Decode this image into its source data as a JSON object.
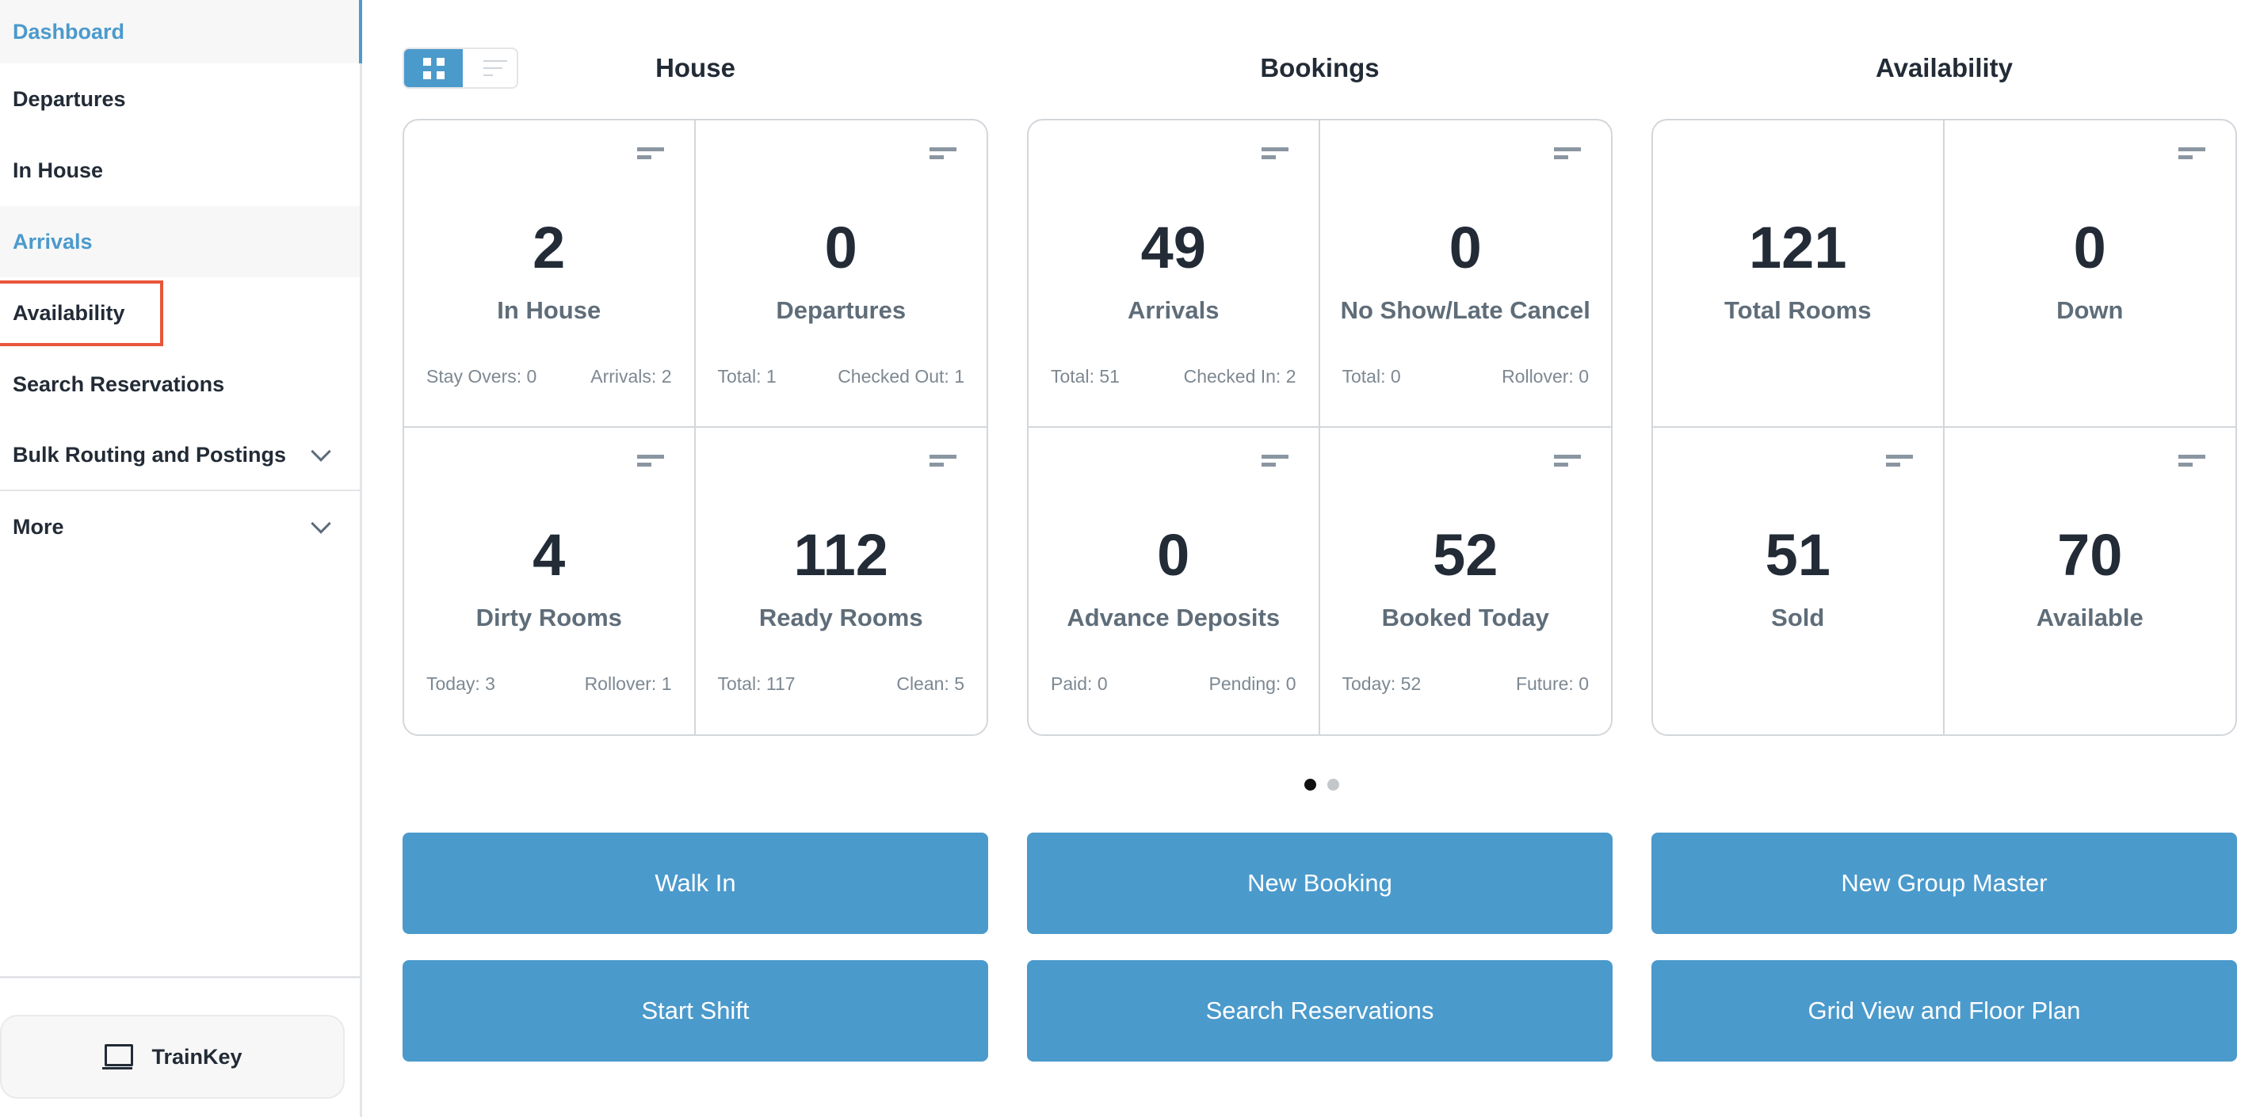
{
  "sidebar": {
    "items": [
      {
        "label": "Dashboard"
      },
      {
        "label": "Departures"
      },
      {
        "label": "In House"
      },
      {
        "label": "Arrivals"
      },
      {
        "label": "Availability"
      },
      {
        "label": "Search Reservations"
      },
      {
        "label": "Bulk Routing and Postings"
      },
      {
        "label": "More"
      }
    ],
    "trainkey": "TrainKey"
  },
  "colors": {
    "accent": "#4b9acc",
    "highlight": "#e8553a"
  },
  "sections": [
    {
      "title": "House",
      "cells": [
        {
          "value": "2",
          "label": "In House",
          "left": "Stay Overs: 0",
          "right": "Arrivals: 2"
        },
        {
          "value": "0",
          "label": "Departures",
          "left": "Total: 1",
          "right": "Checked Out: 1"
        },
        {
          "value": "4",
          "label": "Dirty Rooms",
          "left": "Today: 3",
          "right": "Rollover: 1"
        },
        {
          "value": "112",
          "label": "Ready Rooms",
          "left": "Total: 117",
          "right": "Clean: 5"
        }
      ]
    },
    {
      "title": "Bookings",
      "cells": [
        {
          "value": "49",
          "label": "Arrivals",
          "left": "Total: 51",
          "right": "Checked In: 2"
        },
        {
          "value": "0",
          "label": "No Show/Late Cancel",
          "left": "Total: 0",
          "right": "Rollover: 0"
        },
        {
          "value": "0",
          "label": "Advance Deposits",
          "left": "Paid: 0",
          "right": "Pending: 0"
        },
        {
          "value": "52",
          "label": "Booked Today",
          "left": "Today: 52",
          "right": "Future: 0"
        }
      ]
    },
    {
      "title": "Availability",
      "cells": [
        {
          "value": "121",
          "label": "Total Rooms"
        },
        {
          "value": "0",
          "label": "Down"
        },
        {
          "value": "51",
          "label": "Sold"
        },
        {
          "value": "70",
          "label": "Available"
        }
      ]
    }
  ],
  "pager": {
    "current": 1,
    "total": 2
  },
  "buttons": [
    "Walk In",
    "New Booking",
    "New Group Master",
    "Start Shift",
    "Search Reservations",
    "Grid View and Floor Plan"
  ]
}
